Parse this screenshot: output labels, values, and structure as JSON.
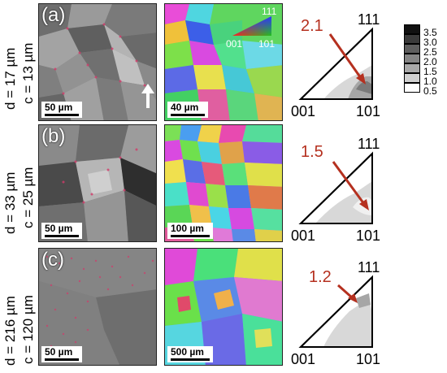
{
  "rows": [
    {
      "letter": "(a)",
      "d_label": "d = 17 µm",
      "c_label": "c = 13 µm",
      "sem_scale": "50 µm",
      "ebsd_scale": "40 µm",
      "peak_value": "2.1"
    },
    {
      "letter": "(b)",
      "d_label": "d = 33 µm",
      "c_label": "c = 25 µm",
      "sem_scale": "50 µm",
      "ebsd_scale": "100 µm",
      "peak_value": "1.5"
    },
    {
      "letter": "(c)",
      "d_label": "d = 216 µm",
      "c_label": "c = 120 µm",
      "sem_scale": "50 µm",
      "ebsd_scale": "500 µm",
      "peak_value": "1.2"
    }
  ],
  "ipf_corners": {
    "top": "111",
    "left": "001",
    "right": "101"
  },
  "color_key": {
    "top": "111",
    "left": "001",
    "right": "101"
  },
  "legend_ticks": [
    "3.5",
    "3.0",
    "2.5",
    "2.0",
    "1.5",
    "1.0",
    "0.5"
  ],
  "legend_colors": [
    "#111111",
    "#3a3a3a",
    "#5e5e5e",
    "#858585",
    "#a9a9a9",
    "#d0d0d0",
    "#ffffff"
  ],
  "arrow_color": "#b5301f"
}
